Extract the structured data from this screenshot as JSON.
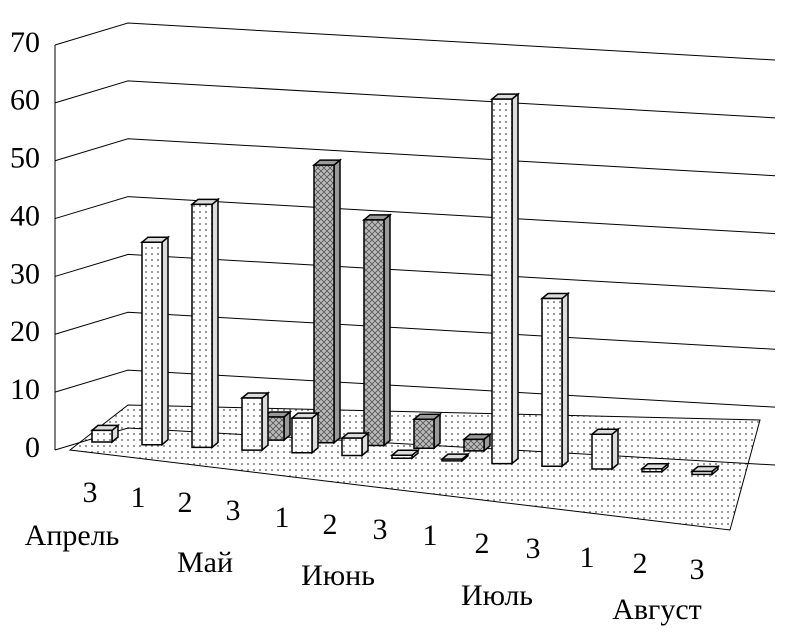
{
  "chart_data": {
    "type": "bar3d",
    "categories": [
      "3",
      "1",
      "2",
      "3",
      "1",
      "2",
      "3",
      "1",
      "2",
      "3",
      "1",
      "2",
      "3"
    ],
    "group_labels": [
      "Апрель",
      "Май",
      "Июнь",
      "Июль",
      "Август"
    ],
    "series": [
      {
        "color": "#dcdcdc",
        "values": [
          2,
          35,
          42,
          9,
          6,
          3,
          0.5,
          0.3,
          63,
          29,
          6,
          0.5,
          0.5
        ]
      },
      {
        "color": "#9a9a9a",
        "values": [
          null,
          null,
          null,
          4,
          48,
          39,
          5,
          2,
          null,
          null,
          null,
          null,
          null
        ]
      }
    ],
    "ylim": [
      0,
      70
    ],
    "yticks": [
      0,
      10,
      20,
      30,
      40,
      50,
      60,
      70
    ],
    "grid": true
  }
}
